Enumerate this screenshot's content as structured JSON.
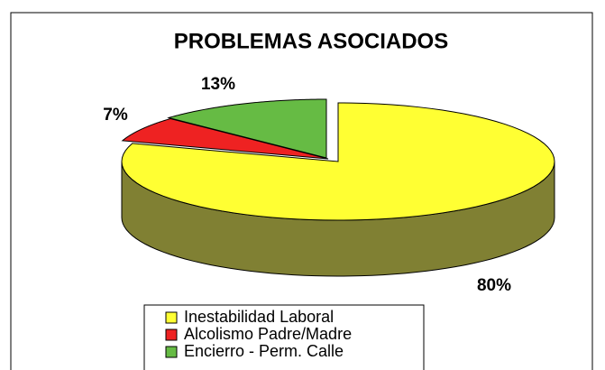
{
  "chart_data": {
    "type": "pie3d",
    "title": "PROBLEMAS ASOCIADOS",
    "categories": [
      "Inestabilidad Laboral",
      "Alcolismo Padre/Madre",
      "Encierro - Perm. Calle"
    ],
    "values": [
      80,
      7,
      13
    ],
    "value_labels": [
      "80%",
      "7%",
      "13%"
    ],
    "colors": [
      "#ffff33",
      "#ee2222",
      "#66bb44"
    ],
    "side_colors": [
      "#808033",
      "#991111",
      "#337722"
    ]
  }
}
